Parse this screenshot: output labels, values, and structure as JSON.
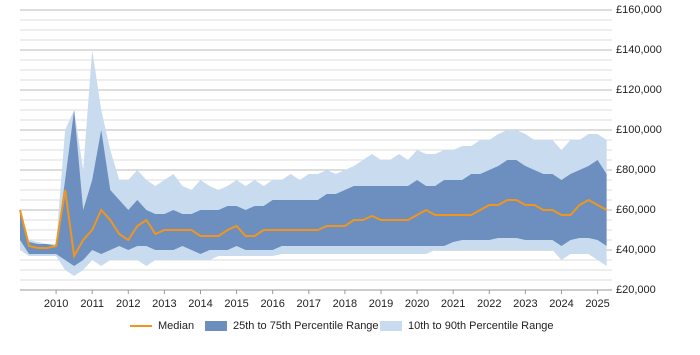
{
  "chart_data": {
    "type": "band_line",
    "x": [
      2009.0,
      2009.25,
      2009.5,
      2009.75,
      2010.0,
      2010.25,
      2010.5,
      2010.75,
      2011.0,
      2011.25,
      2011.5,
      2011.75,
      2012.0,
      2012.25,
      2012.5,
      2012.75,
      2013.0,
      2013.25,
      2013.5,
      2013.75,
      2014.0,
      2014.25,
      2014.5,
      2014.75,
      2015.0,
      2015.25,
      2015.5,
      2015.75,
      2016.0,
      2016.25,
      2016.5,
      2016.75,
      2017.0,
      2017.25,
      2017.5,
      2017.75,
      2018.0,
      2018.25,
      2018.5,
      2018.75,
      2019.0,
      2019.25,
      2019.5,
      2019.75,
      2020.0,
      2020.25,
      2020.5,
      2020.75,
      2021.0,
      2021.25,
      2021.5,
      2021.75,
      2022.0,
      2022.25,
      2022.5,
      2022.75,
      2023.0,
      2023.25,
      2023.5,
      2023.75,
      2024.0,
      2024.25,
      2024.5,
      2024.75,
      2025.0,
      2025.25
    ],
    "series": [
      {
        "name": "Median",
        "color": "#f0961e",
        "values": [
          60000,
          42000,
          41000,
          41000,
          42000,
          70000,
          37000,
          45000,
          50000,
          60000,
          55000,
          48000,
          45000,
          52000,
          55000,
          48000,
          50000,
          50000,
          50000,
          50000,
          47000,
          47000,
          47000,
          50000,
          52000,
          47000,
          47000,
          50000,
          50000,
          50000,
          50000,
          50000,
          50000,
          50000,
          52000,
          52000,
          52000,
          55000,
          55000,
          57000,
          55000,
          55000,
          55000,
          55000,
          57500,
          60000,
          57500,
          57500,
          57500,
          57500,
          57500,
          60000,
          62500,
          62500,
          65000,
          65000,
          62500,
          62500,
          60000,
          60000,
          57500,
          57500,
          62500,
          65000,
          62500,
          60000
        ]
      },
      {
        "name": "25th to 75th Percentile Range",
        "color": "#6c8fbf",
        "lower": [
          45000,
          38000,
          38000,
          38000,
          38000,
          35000,
          32000,
          35000,
          40000,
          38000,
          40000,
          42000,
          40000,
          42000,
          42000,
          40000,
          40000,
          40000,
          42000,
          40000,
          38000,
          40000,
          40000,
          40000,
          42000,
          40000,
          40000,
          40000,
          40000,
          42000,
          42000,
          42000,
          42000,
          42000,
          42000,
          42000,
          42000,
          42000,
          42000,
          42000,
          42000,
          42000,
          42000,
          42000,
          42000,
          42000,
          42000,
          42000,
          44000,
          45000,
          45000,
          45000,
          45000,
          46000,
          46000,
          46000,
          45000,
          45000,
          45000,
          45000,
          42000,
          45000,
          46000,
          46000,
          45000,
          42000
        ],
        "upper": [
          60000,
          44000,
          43000,
          43000,
          42000,
          75000,
          110000,
          60000,
          75000,
          100000,
          70000,
          65000,
          60000,
          65000,
          60000,
          58000,
          58000,
          60000,
          58000,
          58000,
          60000,
          60000,
          60000,
          62000,
          62000,
          60000,
          62000,
          62000,
          65000,
          65000,
          65000,
          65000,
          65000,
          65000,
          68000,
          68000,
          70000,
          72000,
          72000,
          72000,
          72000,
          72000,
          72000,
          72000,
          75000,
          72000,
          72000,
          75000,
          75000,
          75000,
          78000,
          78000,
          80000,
          82000,
          85000,
          85000,
          82000,
          80000,
          78000,
          78000,
          75000,
          78000,
          80000,
          82000,
          85000,
          78000
        ]
      },
      {
        "name": "10th to 90th Percentile Range",
        "color": "#c9dbee",
        "lower": [
          40000,
          37000,
          37000,
          37000,
          37000,
          30000,
          27000,
          30000,
          35000,
          32000,
          35000,
          35000,
          35000,
          35000,
          32000,
          35000,
          35000,
          35000,
          35000,
          35000,
          35000,
          35000,
          37000,
          37000,
          37000,
          37000,
          37000,
          37000,
          37000,
          38000,
          38000,
          38000,
          38000,
          38000,
          38000,
          38000,
          38000,
          38000,
          38000,
          38000,
          38000,
          38000,
          38000,
          38000,
          38000,
          38000,
          40000,
          40000,
          40000,
          40000,
          40000,
          40000,
          40000,
          40000,
          40000,
          40000,
          40000,
          40000,
          40000,
          40000,
          35000,
          38000,
          38000,
          38000,
          35000,
          32000
        ],
        "upper": [
          60000,
          45000,
          44000,
          43000,
          43000,
          100000,
          110000,
          80000,
          140000,
          110000,
          90000,
          75000,
          75000,
          80000,
          75000,
          72000,
          75000,
          78000,
          72000,
          70000,
          75000,
          72000,
          70000,
          72000,
          75000,
          72000,
          75000,
          72000,
          75000,
          75000,
          78000,
          75000,
          78000,
          78000,
          80000,
          78000,
          80000,
          82000,
          85000,
          88000,
          85000,
          85000,
          88000,
          85000,
          90000,
          88000,
          88000,
          90000,
          90000,
          92000,
          92000,
          95000,
          95000,
          98000,
          100000,
          100000,
          98000,
          95000,
          95000,
          95000,
          90000,
          95000,
          95000,
          98000,
          98000,
          95000
        ]
      }
    ],
    "xlim": [
      2009,
      2025.4
    ],
    "xticks": [
      2010,
      2011,
      2012,
      2013,
      2014,
      2015,
      2016,
      2017,
      2018,
      2019,
      2020,
      2021,
      2022,
      2023,
      2024,
      2025
    ],
    "ylim": [
      20000,
      160000
    ],
    "yticks": [
      {
        "value": 20000,
        "label": "£20,000"
      },
      {
        "value": 40000,
        "label": "£40,000"
      },
      {
        "value": 60000,
        "label": "£60,000"
      },
      {
        "value": 80000,
        "label": "£80,000"
      },
      {
        "value": 100000,
        "label": "£100,000"
      },
      {
        "value": 120000,
        "label": "£120,000"
      },
      {
        "value": 140000,
        "label": "£140,000"
      },
      {
        "value": 160000,
        "label": "£160,000"
      }
    ],
    "yminorticks": [
      25000,
      30000,
      35000,
      45000,
      50000,
      55000,
      65000,
      70000,
      75000,
      85000,
      90000,
      95000,
      105000,
      110000,
      115000,
      125000,
      130000,
      135000,
      145000,
      150000,
      155000
    ],
    "grid": true,
    "legend": "bottom"
  }
}
